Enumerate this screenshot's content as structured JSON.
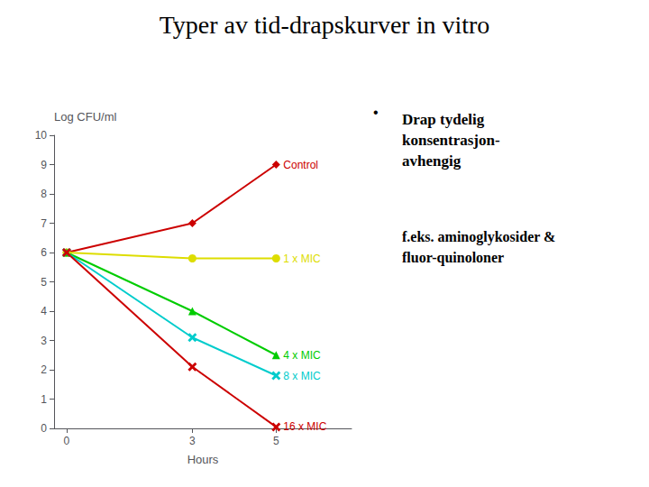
{
  "chart_data": {
    "type": "line",
    "title": "Typer av tid-drapskurver in vitro",
    "xlabel": "Hours",
    "ylabel": "Log CFU/ml",
    "x": [
      0,
      3,
      5
    ],
    "series": [
      {
        "name": "Control",
        "color": "#cc0000",
        "marker": "diamond",
        "line_style": "solid",
        "values": [
          6,
          7,
          9
        ]
      },
      {
        "name": "1 x MIC",
        "color": "#dddd00",
        "marker": "circle",
        "line_style": "solid",
        "values": [
          6,
          5.8,
          5.8
        ]
      },
      {
        "name": "4 x MIC",
        "color": "#00cc00",
        "marker": "triangle",
        "line_style": "solid",
        "values": [
          6,
          4,
          2.5
        ]
      },
      {
        "name": "8 x MIC",
        "color": "#00cccc",
        "marker": "x",
        "line_style": "solid",
        "values": [
          6,
          3.1,
          1.8
        ]
      },
      {
        "name": "16 x MIC",
        "color": "#cc0000",
        "marker": "x",
        "line_style": "solid",
        "values": [
          6,
          2.1,
          0.05
        ]
      }
    ],
    "xlim": [
      -0.3,
      6.8
    ],
    "xticks": [
      0,
      3,
      5
    ],
    "ylim": [
      0,
      10
    ],
    "yticks": [
      0,
      1,
      2,
      3,
      4,
      5,
      6,
      7,
      8,
      9,
      10
    ],
    "grid": false,
    "annotations": [
      "•",
      "Drap tydelig\nkonsentrasjon-\navhengig",
      "f.eks. aminoglykosider &\nfluor-quinoloner"
    ]
  }
}
